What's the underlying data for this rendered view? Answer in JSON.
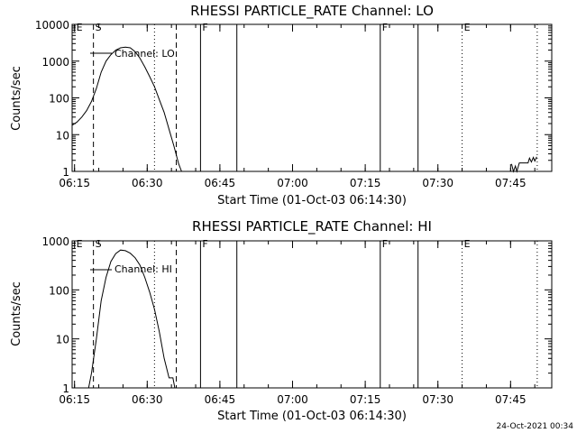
{
  "footer": {
    "timestamp": "24-Oct-2021 00:34"
  },
  "chart_data": [
    {
      "type": "line",
      "title": "RHESSI PARTICLE_RATE Channel: LO",
      "xlabel": "Start Time (01-Oct-03 06:14:30)",
      "ylabel": "Counts/sec",
      "yscale": "log",
      "ylim": [
        1,
        10000
      ],
      "xlim_minutes": [
        0,
        99
      ],
      "xtick_minutes": [
        0.5,
        15.5,
        30.5,
        45.5,
        60.5,
        75.5,
        90.5
      ],
      "xtick_labels": [
        "06:15",
        "06:30",
        "06:45",
        "07:00",
        "07:15",
        "07:30",
        "07:45"
      ],
      "ytick_values": [
        1,
        10,
        100,
        1000,
        10000
      ],
      "ytick_labels": [
        "1",
        "10",
        "100",
        "1000",
        "10000"
      ],
      "legend": "Channel: LO",
      "markers": [
        {
          "label": "E",
          "minute": 0.5,
          "style": "none"
        },
        {
          "label": "S",
          "minute": 4.4,
          "style": "dashed"
        },
        {
          "label": "",
          "minute": 17.0,
          "style": "dotted"
        },
        {
          "label": "",
          "minute": 21.5,
          "style": "dashed"
        },
        {
          "label": "F",
          "minute": 26.5,
          "style": "solid"
        },
        {
          "label": "",
          "minute": 34.0,
          "style": "solid"
        },
        {
          "label": "F",
          "minute": 63.6,
          "style": "solid"
        },
        {
          "label": "",
          "minute": 71.4,
          "style": "solid"
        },
        {
          "label": "E",
          "minute": 80.5,
          "style": "dotted"
        },
        {
          "label": "",
          "minute": 96.0,
          "style": "dotted"
        }
      ],
      "series": [
        {
          "name": "Channel: LO",
          "segments": [
            [
              [
                0.0,
                18
              ],
              [
                1.0,
                22
              ],
              [
                2.0,
                30
              ],
              [
                3.0,
                45
              ],
              [
                4.0,
                80
              ],
              [
                5.0,
                180
              ],
              [
                6.0,
                500
              ],
              [
                7.0,
                1000
              ],
              [
                8.0,
                1500
              ],
              [
                9.0,
                2000
              ],
              [
                10.0,
                2300
              ],
              [
                11.0,
                2400
              ],
              [
                12.0,
                2300
              ],
              [
                13.0,
                1800
              ],
              [
                14.0,
                1200
              ],
              [
                15.0,
                700
              ],
              [
                16.0,
                380
              ],
              [
                17.0,
                200
              ],
              [
                18.0,
                90
              ],
              [
                19.0,
                40
              ],
              [
                20.0,
                14
              ],
              [
                21.0,
                5
              ],
              [
                22.0,
                1.6
              ],
              [
                22.6,
                1.0
              ]
            ],
            [
              [
                90.7,
                1.6
              ],
              [
                91.1,
                1.0
              ],
              [
                91.5,
                1.4
              ],
              [
                91.8,
                1.0
              ],
              [
                92.3,
                1.7
              ],
              [
                93.0,
                1.7
              ],
              [
                94.1,
                1.7
              ],
              [
                94.4,
                2.3
              ],
              [
                94.8,
                1.8
              ],
              [
                95.2,
                2.4
              ],
              [
                95.5,
                1.9
              ],
              [
                95.9,
                2.5
              ]
            ]
          ]
        }
      ]
    },
    {
      "type": "line",
      "title": "RHESSI PARTICLE_RATE Channel: HI",
      "xlabel": "Start Time (01-Oct-03 06:14:30)",
      "ylabel": "Counts/sec",
      "yscale": "log",
      "ylim": [
        1,
        1000
      ],
      "xlim_minutes": [
        0,
        99
      ],
      "xtick_minutes": [
        0.5,
        15.5,
        30.5,
        45.5,
        60.5,
        75.5,
        90.5
      ],
      "xtick_labels": [
        "06:15",
        "06:30",
        "06:45",
        "07:00",
        "07:15",
        "07:30",
        "07:45"
      ],
      "ytick_values": [
        1,
        10,
        100,
        1000
      ],
      "ytick_labels": [
        "1",
        "10",
        "100",
        "1000"
      ],
      "legend": "Channel: HI",
      "markers": [
        {
          "label": "E",
          "minute": 0.5,
          "style": "none"
        },
        {
          "label": "S",
          "minute": 4.4,
          "style": "dashed"
        },
        {
          "label": "",
          "minute": 17.0,
          "style": "dotted"
        },
        {
          "label": "",
          "minute": 21.5,
          "style": "dashed"
        },
        {
          "label": "F",
          "minute": 26.5,
          "style": "solid"
        },
        {
          "label": "",
          "minute": 34.0,
          "style": "solid"
        },
        {
          "label": "F",
          "minute": 63.6,
          "style": "solid"
        },
        {
          "label": "",
          "minute": 71.4,
          "style": "solid"
        },
        {
          "label": "E",
          "minute": 80.5,
          "style": "dotted"
        },
        {
          "label": "",
          "minute": 96.0,
          "style": "dotted"
        }
      ],
      "series": [
        {
          "name": "Channel: HI",
          "segments": [
            [
              [
                3.4,
                1.0
              ],
              [
                4.0,
                2.0
              ],
              [
                5.0,
                10
              ],
              [
                6.0,
                60
              ],
              [
                7.0,
                180
              ],
              [
                8.0,
                380
              ],
              [
                9.0,
                550
              ],
              [
                10.0,
                650
              ],
              [
                11.0,
                630
              ],
              [
                12.0,
                560
              ],
              [
                13.0,
                450
              ],
              [
                14.0,
                320
              ],
              [
                15.0,
                180
              ],
              [
                16.0,
                90
              ],
              [
                17.0,
                40
              ],
              [
                18.0,
                14
              ],
              [
                19.0,
                4
              ],
              [
                20.0,
                1.6
              ],
              [
                20.8,
                1.6
              ],
              [
                21.2,
                1.0
              ]
            ]
          ]
        }
      ]
    }
  ]
}
